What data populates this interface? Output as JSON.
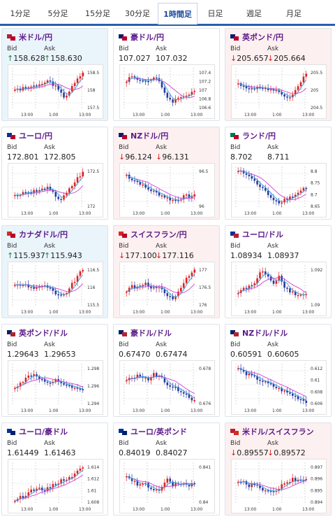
{
  "tabs": [
    "1分足",
    "5分足",
    "15分足",
    "30分足",
    "1時間足",
    "日足",
    "週足",
    "月足"
  ],
  "active_tab": 4,
  "labels": {
    "bid": "Bid",
    "ask": "Ask"
  },
  "colors": {
    "up": "#1a8a3a",
    "down": "#d02020",
    "candle_up": "#e02020",
    "candle_down": "#2a3aa0",
    "ma1": "#d040d0",
    "ma2": "#30a0e0"
  },
  "time_labels": [
    "13:00",
    "1:00",
    "13:00"
  ],
  "pairs": [
    {
      "name": "米ドル/円",
      "flags": [
        "#b22234",
        "#bc002d"
      ],
      "bid": "158.628",
      "ask": "158.630",
      "dir": "up",
      "ticks": [
        "158.5",
        "158",
        "157.5"
      ]
    },
    {
      "name": "豪ドル/円",
      "flags": [
        "#012169",
        "#bc002d"
      ],
      "bid": "107.027",
      "ask": "107.032",
      "dir": "flat",
      "ticks": [
        "107.4",
        "107.2",
        "107",
        "106.8",
        "106.6"
      ]
    },
    {
      "name": "英ポンド/円",
      "flags": [
        "#012169",
        "#bc002d"
      ],
      "bid": "205.657",
      "ask": "205.664",
      "dir": "down",
      "ticks": [
        "205.5",
        "205",
        "204.5"
      ]
    },
    {
      "name": "ユーロ/円",
      "flags": [
        "#003399",
        "#bc002d"
      ],
      "bid": "172.801",
      "ask": "172.805",
      "dir": "flat",
      "ticks": [
        "172.5",
        "172"
      ]
    },
    {
      "name": "NZドル/円",
      "flags": [
        "#012169",
        "#bc002d"
      ],
      "bid": "96.124",
      "ask": "96.131",
      "dir": "down",
      "ticks": [
        "96.5",
        "96"
      ]
    },
    {
      "name": "ランド/円",
      "flags": [
        "#007a4d",
        "#bc002d"
      ],
      "bid": "8.702",
      "ask": "8.711",
      "dir": "flat",
      "ticks": [
        "8.8",
        "8.75",
        "8.7",
        "8.65"
      ]
    },
    {
      "name": "カナダドル/円",
      "flags": [
        "#d52b1e",
        "#bc002d"
      ],
      "bid": "115.937",
      "ask": "115.943",
      "dir": "up",
      "ticks": [
        "116.5",
        "116",
        "115.5"
      ]
    },
    {
      "name": "スイスフラン/円",
      "flags": [
        "#d52b1e",
        "#bc002d"
      ],
      "bid": "177.100",
      "ask": "177.116",
      "dir": "down",
      "ticks": [
        "177",
        "176.5",
        "176"
      ]
    },
    {
      "name": "ユーロ/ドル",
      "flags": [
        "#003399",
        "#b22234"
      ],
      "bid": "1.08934",
      "ask": "1.08937",
      "dir": "flat",
      "ticks": [
        "1.092",
        "1.09"
      ]
    },
    {
      "name": "英ポンド/ドル",
      "flags": [
        "#012169",
        "#b22234"
      ],
      "bid": "1.29643",
      "ask": "1.29653",
      "dir": "flat",
      "ticks": [
        "1.298",
        "1.296",
        "1.294"
      ]
    },
    {
      "name": "豪ドル/ドル",
      "flags": [
        "#012169",
        "#b22234"
      ],
      "bid": "0.67470",
      "ask": "0.67474",
      "dir": "flat",
      "ticks": [
        "0.678",
        "0.676"
      ]
    },
    {
      "name": "NZドル/ドル",
      "flags": [
        "#012169",
        "#b22234"
      ],
      "bid": "0.60591",
      "ask": "0.60605",
      "dir": "flat",
      "ticks": [
        "0.612",
        "0.61",
        "0.608",
        "0.606"
      ]
    },
    {
      "name": "ユーロ/豪ドル",
      "flags": [
        "#003399",
        "#012169"
      ],
      "bid": "1.61449",
      "ask": "1.61463",
      "dir": "flat",
      "ticks": [
        "1.614",
        "1.612",
        "1.61",
        "1.608"
      ]
    },
    {
      "name": "ユーロ/英ポンド",
      "flags": [
        "#003399",
        "#012169"
      ],
      "bid": "0.84019",
      "ask": "0.84027",
      "dir": "flat",
      "ticks": [
        "0.841",
        "0.84"
      ]
    },
    {
      "name": "米ドル/スイスフラン",
      "flags": [
        "#b22234",
        "#d52b1e"
      ],
      "bid": "0.89557",
      "ask": "0.89572",
      "dir": "down",
      "ticks": [
        "0.897",
        "0.896",
        "0.895",
        "0.894"
      ]
    }
  ]
}
